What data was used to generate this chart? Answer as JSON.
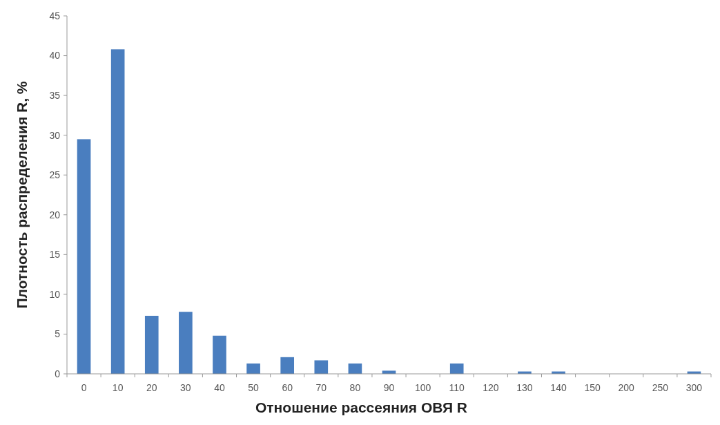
{
  "chart_data": {
    "type": "bar",
    "xlabel": "Отношение рассеяния ОВЯ R",
    "ylabel": "Плотность распределения R, %",
    "categories": [
      "0",
      "10",
      "20",
      "30",
      "40",
      "50",
      "60",
      "70",
      "80",
      "90",
      "100",
      "110",
      "120",
      "130",
      "140",
      "150",
      "200",
      "250",
      "300"
    ],
    "values": [
      29.5,
      40.8,
      7.3,
      7.8,
      4.8,
      1.3,
      2.1,
      1.7,
      1.3,
      0.4,
      0,
      1.3,
      0,
      0.3,
      0.3,
      0,
      0,
      0,
      0.3
    ],
    "color": "#4a7ebf",
    "ylim": [
      0,
      45
    ],
    "yticks": [
      0,
      5,
      10,
      15,
      20,
      25,
      30,
      35,
      40,
      45
    ],
    "grid": false
  }
}
